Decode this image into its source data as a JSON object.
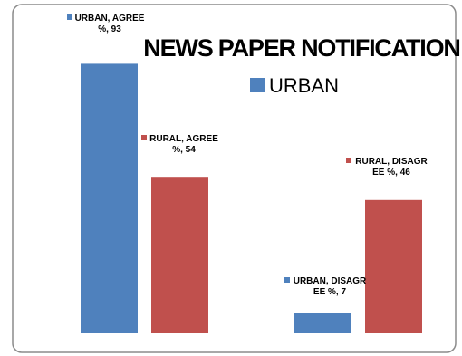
{
  "chart_data": {
    "type": "bar",
    "title": "NEWS PAPER NOTIFICATION",
    "legend": {
      "placement": "top-right",
      "entries": [
        "URBAN"
      ]
    },
    "categories": [
      "AGREE",
      "DISAGREE"
    ],
    "series": [
      {
        "name": "URBAN",
        "color": "#4F81BD",
        "values": [
          93,
          7
        ]
      },
      {
        "name": "RURAL",
        "color": "#C0504D",
        "values": [
          54,
          46
        ]
      }
    ],
    "data_labels": [
      {
        "series": 0,
        "category": 0,
        "lines": [
          "URBAN, AGREE",
          "%, 93"
        ]
      },
      {
        "series": 1,
        "category": 0,
        "lines": [
          "RURAL, AGREE",
          "%, 54"
        ]
      },
      {
        "series": 0,
        "category": 1,
        "lines": [
          "URBAN, DISAGR",
          "EE %, 7"
        ]
      },
      {
        "series": 1,
        "category": 1,
        "lines": [
          "RURAL, DISAGR",
          "EE %, 46"
        ]
      }
    ],
    "ylim": [
      0,
      100
    ],
    "grid": false,
    "xlabel": "",
    "ylabel": ""
  }
}
